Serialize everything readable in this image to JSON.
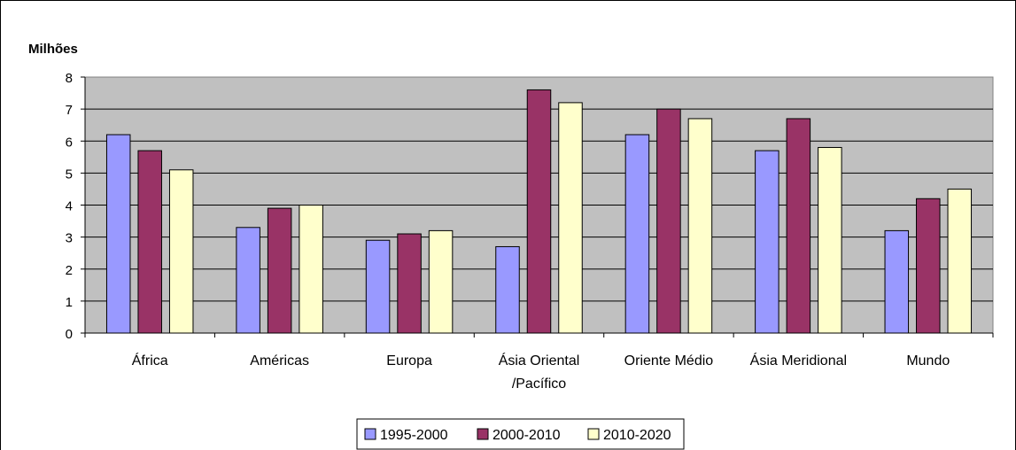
{
  "chart_data": {
    "type": "bar",
    "ylabel": "Milhões",
    "ylim": [
      0,
      8
    ],
    "yticks": [
      "0",
      "1",
      "2",
      "3",
      "4",
      "5",
      "6",
      "7",
      "8"
    ],
    "grid": true,
    "categories": [
      [
        "África"
      ],
      [
        "Américas"
      ],
      [
        "Europa"
      ],
      [
        "Ásia Oriental",
        "/Pacífico"
      ],
      [
        "Oriente Médio"
      ],
      [
        "Ásia Meridional"
      ],
      [
        "Mundo"
      ]
    ],
    "series": [
      {
        "name": "1995-2000",
        "color": "#9999ff",
        "values": [
          6.2,
          3.3,
          2.9,
          2.7,
          6.2,
          5.7,
          3.2
        ]
      },
      {
        "name": "2000-2010",
        "color": "#993366",
        "values": [
          5.7,
          3.9,
          3.1,
          7.6,
          7.0,
          6.7,
          4.2
        ]
      },
      {
        "name": "2010-2020",
        "color": "#ffffcc",
        "values": [
          5.1,
          4.0,
          3.2,
          7.2,
          6.7,
          5.8,
          4.5
        ]
      }
    ],
    "legend_position": "bottom",
    "plot_background": "#c0c0c0"
  }
}
